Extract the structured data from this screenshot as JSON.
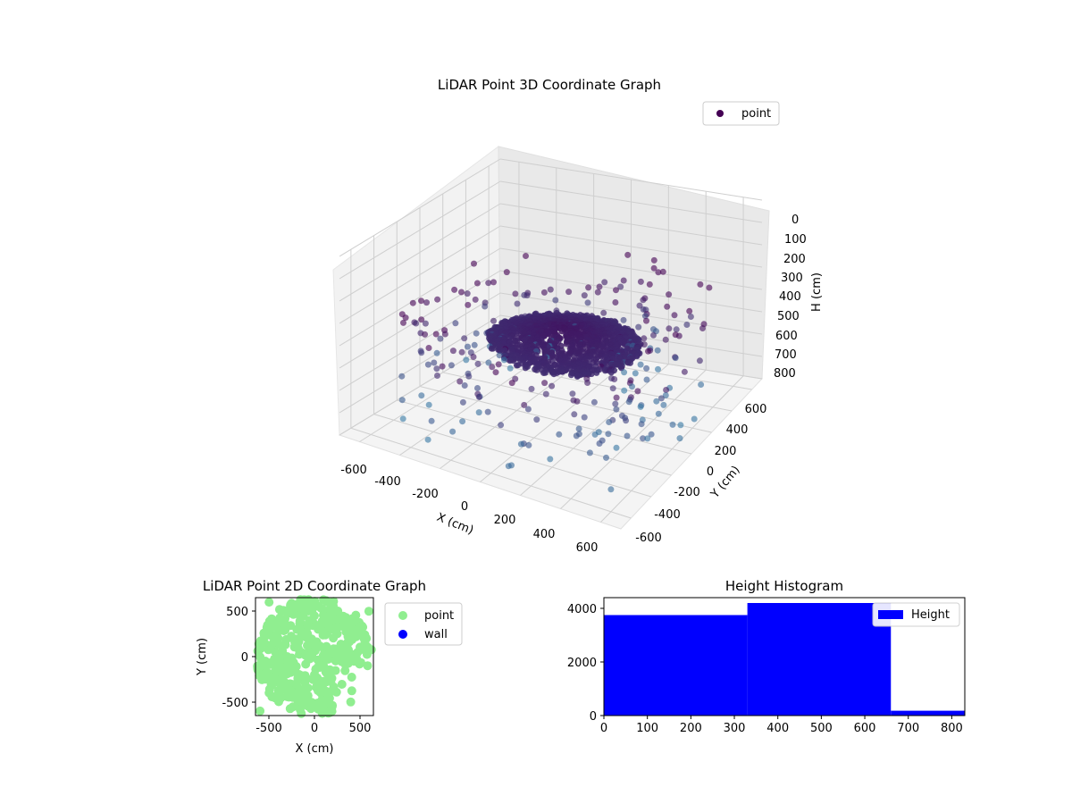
{
  "colors": {
    "point_cloud": "viridis",
    "point2d": "#90ee90",
    "wall": "#0000ff",
    "hist": "#0000ff"
  },
  "chart_data": [
    {
      "type": "scatter",
      "title": "LiDAR Point 3D Coordinate Graph",
      "xlabel": "X (cm)",
      "ylabel": "Y (cm)",
      "zlabel": "H (cm)",
      "xlim": [
        -700,
        700
      ],
      "ylim": [
        -700,
        700
      ],
      "zlim": [
        800,
        0
      ],
      "xticks": [
        -600,
        -400,
        -200,
        0,
        200,
        400,
        600
      ],
      "yticks": [
        -600,
        -400,
        -200,
        0,
        200,
        400,
        600
      ],
      "zticks": [
        0,
        100,
        200,
        300,
        400,
        500,
        600,
        700,
        800
      ],
      "legend": {
        "position": "top-right",
        "entries": [
          "point"
        ]
      },
      "series": [
        {
          "name": "point",
          "shape": "dense dome of points near the center at H≈400–500, sparse ring of points toward the edges",
          "sample_points": [
            [
              0,
              0,
              420
            ],
            [
              150,
              100,
              440
            ],
            [
              -150,
              80,
              440
            ],
            [
              100,
              -150,
              450
            ],
            [
              -80,
              -120,
              460
            ],
            [
              300,
              200,
              480
            ],
            [
              -300,
              250,
              490
            ],
            [
              250,
              -300,
              500
            ],
            [
              -350,
              -150,
              520
            ],
            [
              500,
              550,
              350
            ],
            [
              600,
              300,
              400
            ],
            [
              -600,
              400,
              550
            ],
            [
              -500,
              -500,
              650
            ],
            [
              600,
              -600,
              700
            ]
          ]
        }
      ]
    },
    {
      "type": "scatter",
      "title": "LiDAR Point 2D Coordinate Graph",
      "xlabel": "X (cm)",
      "ylabel": "Y (cm)",
      "xlim": [
        -650,
        650
      ],
      "ylim": [
        -650,
        650
      ],
      "xticks": [
        -500,
        0,
        500
      ],
      "yticks": [
        -500,
        0,
        500
      ],
      "legend": {
        "position": "outside-right",
        "entries": [
          "point",
          "wall"
        ]
      },
      "series": [
        {
          "name": "point",
          "sample_points": [
            [
              -500,
              600
            ],
            [
              -300,
              500
            ],
            [
              0,
              450
            ],
            [
              200,
              300
            ],
            [
              300,
              100
            ],
            [
              100,
              -100
            ],
            [
              -200,
              -300
            ],
            [
              -500,
              -400
            ],
            [
              -600,
              -600
            ],
            [
              -400,
              200
            ],
            [
              -300,
              0
            ],
            [
              0,
              -200
            ],
            [
              400,
              -500
            ],
            [
              600,
              500
            ]
          ]
        },
        {
          "name": "wall",
          "sample_points": []
        }
      ]
    },
    {
      "type": "bar",
      "title": "Height Histogram",
      "xlabel": "",
      "ylabel": "",
      "xlim": [
        0,
        830
      ],
      "ylim": [
        0,
        4400
      ],
      "xticks": [
        0,
        100,
        200,
        300,
        400,
        500,
        600,
        700,
        800
      ],
      "yticks": [
        0,
        2000,
        4000
      ],
      "legend": {
        "position": "top-right",
        "entries": [
          "Height"
        ]
      },
      "bins": [
        {
          "from": 0,
          "to": 330,
          "count": 3750
        },
        {
          "from": 330,
          "to": 660,
          "count": 4200
        },
        {
          "from": 660,
          "to": 830,
          "count": 180
        }
      ]
    }
  ]
}
